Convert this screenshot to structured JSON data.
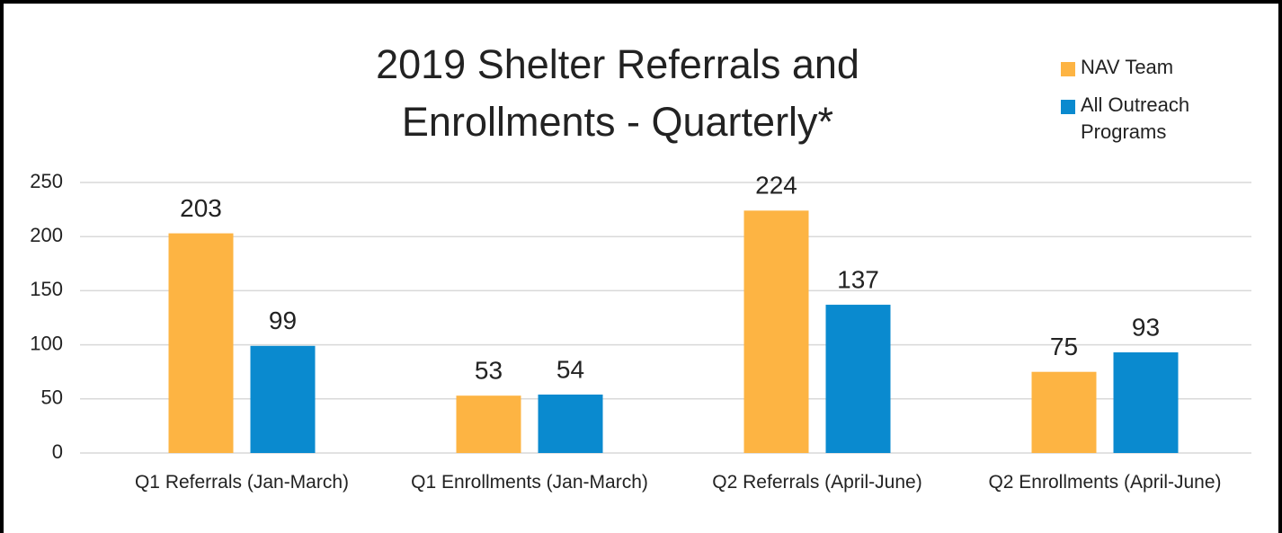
{
  "chart_data": {
    "type": "bar",
    "title": "2019 Shelter Referrals and Enrollments - Quarterly*",
    "categories": [
      "Q1 Referrals (Jan-March)",
      "Q1 Enrollments (Jan-March)",
      "Q2 Referrals (April-June)",
      "Q2 Enrollments (April-June)"
    ],
    "series": [
      {
        "name": "NAV Team",
        "color": "#fdb443",
        "values": [
          203,
          53,
          224,
          75
        ]
      },
      {
        "name": "All Outreach Programs",
        "color": "#0a8acf",
        "values": [
          99,
          54,
          137,
          93
        ]
      }
    ],
    "ylim": [
      0,
      250
    ],
    "yticks": [
      0,
      50,
      100,
      150,
      200,
      250
    ],
    "grid": true,
    "legend": "top-right"
  }
}
